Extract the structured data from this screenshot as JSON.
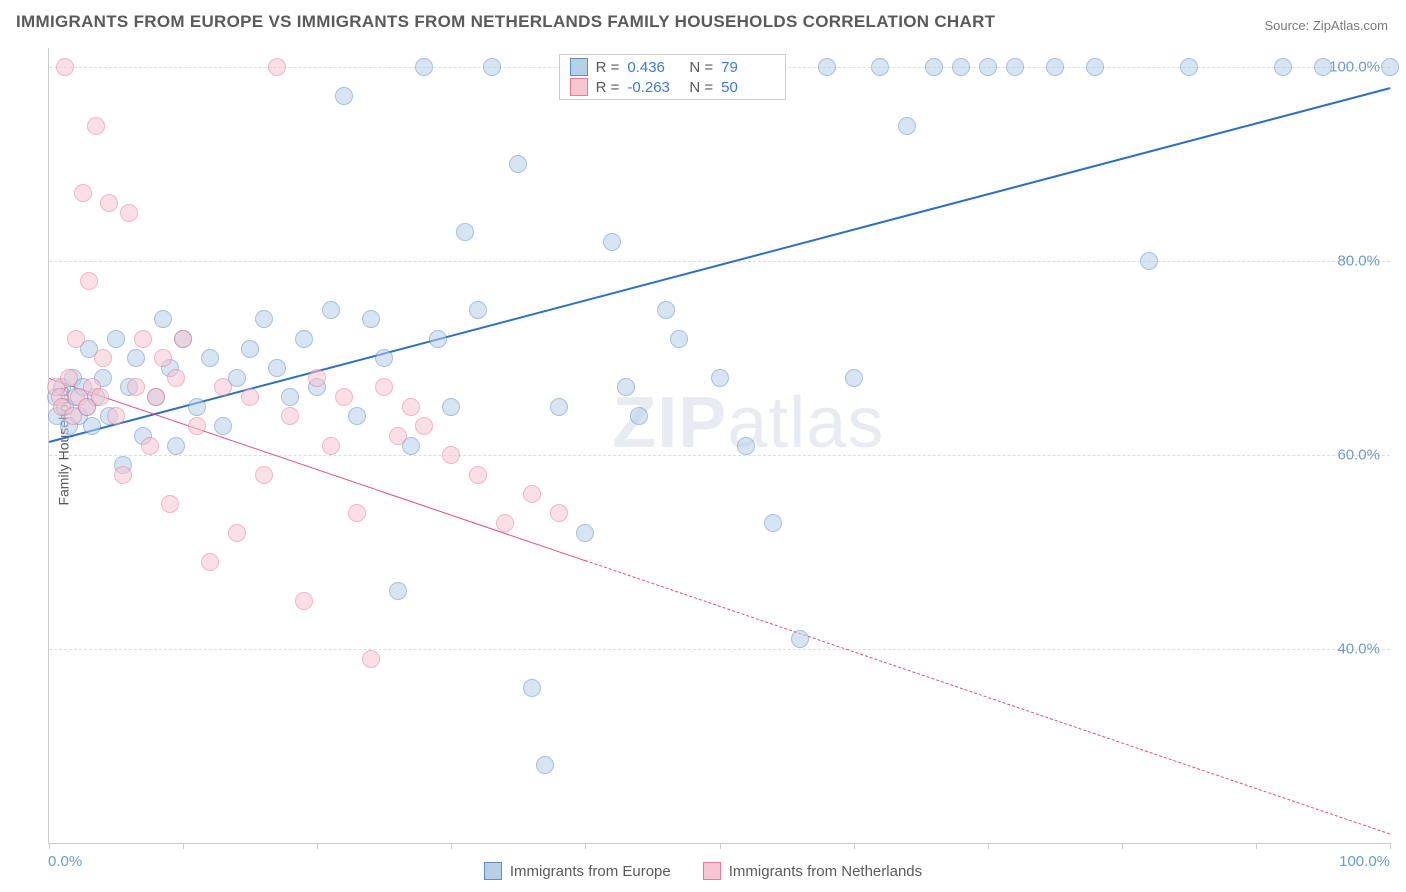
{
  "title": "IMMIGRANTS FROM EUROPE VS IMMIGRANTS FROM NETHERLANDS FAMILY HOUSEHOLDS CORRELATION CHART",
  "source_prefix": "Source: ",
  "source_name": "ZipAtlas.com",
  "ylabel": "Family Households",
  "watermark_bold": "ZIP",
  "watermark_light": "atlas",
  "chart": {
    "type": "scatter",
    "background_color": "#ffffff",
    "grid_color": "#dddddd",
    "axis_color": "#cccccc",
    "tick_label_color": "#6b9bd1",
    "tick_fontsize": 15,
    "label_fontsize": 14,
    "label_color": "#5a5a5a",
    "xlim": [
      0,
      100
    ],
    "ylim": [
      20,
      102
    ],
    "xticks": [
      0,
      10,
      20,
      30,
      40,
      50,
      60,
      70,
      80,
      90,
      100
    ],
    "xtick_labels": {
      "0": "0.0%",
      "100": "100.0%"
    },
    "yticks": [
      40,
      60,
      80,
      100
    ],
    "ytick_labels": {
      "40": "40.0%",
      "60": "60.0%",
      "80": "80.0%",
      "100": "100.0%"
    },
    "marker_radius": 9,
    "marker_opacity": 0.55,
    "marker_stroke_width": 1.5,
    "series": [
      {
        "name": "Immigrants from Europe",
        "fill": "#b8cfe8",
        "stroke": "#5b8fc7",
        "R": "0.436",
        "N": "79",
        "trend": {
          "x1": 0,
          "y1": 61.5,
          "x2": 100,
          "y2": 98.0,
          "color": "#2d6fc1",
          "width": 2,
          "dash_after_x": null
        },
        "points": [
          [
            0.5,
            66
          ],
          [
            0.6,
            64
          ],
          [
            1.0,
            67
          ],
          [
            1.2,
            65
          ],
          [
            1.5,
            63
          ],
          [
            1.8,
            68
          ],
          [
            2.0,
            66
          ],
          [
            2.2,
            64
          ],
          [
            2.5,
            67
          ],
          [
            2.8,
            65
          ],
          [
            3.0,
            71
          ],
          [
            3.2,
            63
          ],
          [
            3.5,
            66
          ],
          [
            4.0,
            68
          ],
          [
            4.5,
            64
          ],
          [
            5.0,
            72
          ],
          [
            5.5,
            59
          ],
          [
            6.0,
            67
          ],
          [
            6.5,
            70
          ],
          [
            7.0,
            62
          ],
          [
            8.0,
            66
          ],
          [
            8.5,
            74
          ],
          [
            9.0,
            69
          ],
          [
            9.5,
            61
          ],
          [
            10.0,
            72
          ],
          [
            11.0,
            65
          ],
          [
            12.0,
            70
          ],
          [
            13.0,
            63
          ],
          [
            14.0,
            68
          ],
          [
            15.0,
            71
          ],
          [
            16.0,
            74
          ],
          [
            17.0,
            69
          ],
          [
            18.0,
            66
          ],
          [
            19.0,
            72
          ],
          [
            20.0,
            67
          ],
          [
            21.0,
            75
          ],
          [
            22.0,
            97
          ],
          [
            23.0,
            64
          ],
          [
            24.0,
            74
          ],
          [
            25.0,
            70
          ],
          [
            26.0,
            46
          ],
          [
            27.0,
            61
          ],
          [
            28.0,
            100
          ],
          [
            29.0,
            72
          ],
          [
            30.0,
            65
          ],
          [
            31.0,
            83
          ],
          [
            32.0,
            75
          ],
          [
            33.0,
            100
          ],
          [
            35.0,
            90
          ],
          [
            36.0,
            36
          ],
          [
            37.0,
            28
          ],
          [
            38.0,
            65
          ],
          [
            40.0,
            52
          ],
          [
            42.0,
            82
          ],
          [
            43.0,
            67
          ],
          [
            44.0,
            64
          ],
          [
            45.0,
            100
          ],
          [
            46.0,
            75
          ],
          [
            47.0,
            72
          ],
          [
            48.0,
            100
          ],
          [
            50.0,
            68
          ],
          [
            52.0,
            61
          ],
          [
            54.0,
            53
          ],
          [
            56.0,
            41
          ],
          [
            58.0,
            100
          ],
          [
            60.0,
            68
          ],
          [
            62.0,
            100
          ],
          [
            64.0,
            94
          ],
          [
            66.0,
            100
          ],
          [
            68.0,
            100
          ],
          [
            70.0,
            100
          ],
          [
            72.0,
            100
          ],
          [
            75.0,
            100
          ],
          [
            78.0,
            100
          ],
          [
            82.0,
            80
          ],
          [
            85.0,
            100
          ],
          [
            92.0,
            100
          ],
          [
            95.0,
            100
          ],
          [
            100.0,
            100
          ]
        ]
      },
      {
        "name": "Immigrants from Netherlands",
        "fill": "#f6c6d2",
        "stroke": "#e87a9a",
        "R": "-0.263",
        "N": "50",
        "trend": {
          "x1": 0,
          "y1": 68.0,
          "x2": 100,
          "y2": 21.0,
          "color": "#e34b7a",
          "width": 1.8,
          "dash_after_x": 40
        },
        "points": [
          [
            0.5,
            67
          ],
          [
            0.8,
            66
          ],
          [
            1.0,
            65
          ],
          [
            1.2,
            100
          ],
          [
            1.5,
            68
          ],
          [
            1.8,
            64
          ],
          [
            2.0,
            72
          ],
          [
            2.2,
            66
          ],
          [
            2.5,
            87
          ],
          [
            2.8,
            65
          ],
          [
            3.0,
            78
          ],
          [
            3.2,
            67
          ],
          [
            3.5,
            94
          ],
          [
            3.8,
            66
          ],
          [
            4.0,
            70
          ],
          [
            4.5,
            86
          ],
          [
            5.0,
            64
          ],
          [
            5.5,
            58
          ],
          [
            6.0,
            85
          ],
          [
            6.5,
            67
          ],
          [
            7.0,
            72
          ],
          [
            7.5,
            61
          ],
          [
            8.0,
            66
          ],
          [
            8.5,
            70
          ],
          [
            9.0,
            55
          ],
          [
            9.5,
            68
          ],
          [
            10.0,
            72
          ],
          [
            11.0,
            63
          ],
          [
            12.0,
            49
          ],
          [
            13.0,
            67
          ],
          [
            14.0,
            52
          ],
          [
            15.0,
            66
          ],
          [
            16.0,
            58
          ],
          [
            17.0,
            100
          ],
          [
            18.0,
            64
          ],
          [
            19.0,
            45
          ],
          [
            20.0,
            68
          ],
          [
            21.0,
            61
          ],
          [
            22.0,
            66
          ],
          [
            23.0,
            54
          ],
          [
            24.0,
            39
          ],
          [
            25.0,
            67
          ],
          [
            26.0,
            62
          ],
          [
            27.0,
            65
          ],
          [
            28.0,
            63
          ],
          [
            30.0,
            60
          ],
          [
            32.0,
            58
          ],
          [
            34.0,
            53
          ],
          [
            36.0,
            56
          ],
          [
            38.0,
            54
          ]
        ]
      }
    ]
  },
  "stat_box": {
    "r_label": "R =",
    "n_label": "N =",
    "value_color_0": "#3a7bd5",
    "value_color_1": "#3a7bd5"
  },
  "legend": {
    "items": [
      {
        "label": "Immigrants from Europe",
        "fill": "#b8cfe8",
        "stroke": "#5b8fc7"
      },
      {
        "label": "Immigrants from Netherlands",
        "fill": "#f6c6d2",
        "stroke": "#e87a9a"
      }
    ]
  }
}
